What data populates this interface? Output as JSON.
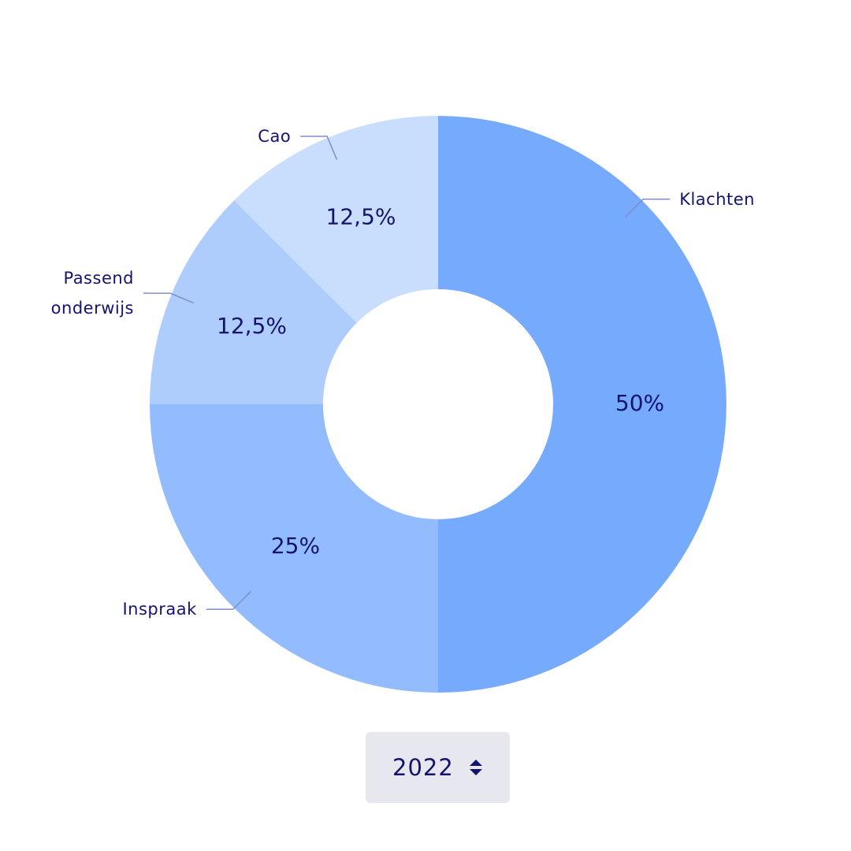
{
  "chart_data": {
    "type": "donut",
    "categories": [
      "Klachten",
      "Inspraak",
      "Passend onderwijs",
      "Cao"
    ],
    "values": [
      50,
      25,
      12.5,
      12.5
    ],
    "value_labels": [
      "50%",
      "25%",
      "12,5%",
      "12,5%"
    ],
    "colors": [
      "#76aafd",
      "#92bcfd",
      "#aecdfd",
      "#c9ddfd"
    ]
  },
  "year_selector": "2022"
}
